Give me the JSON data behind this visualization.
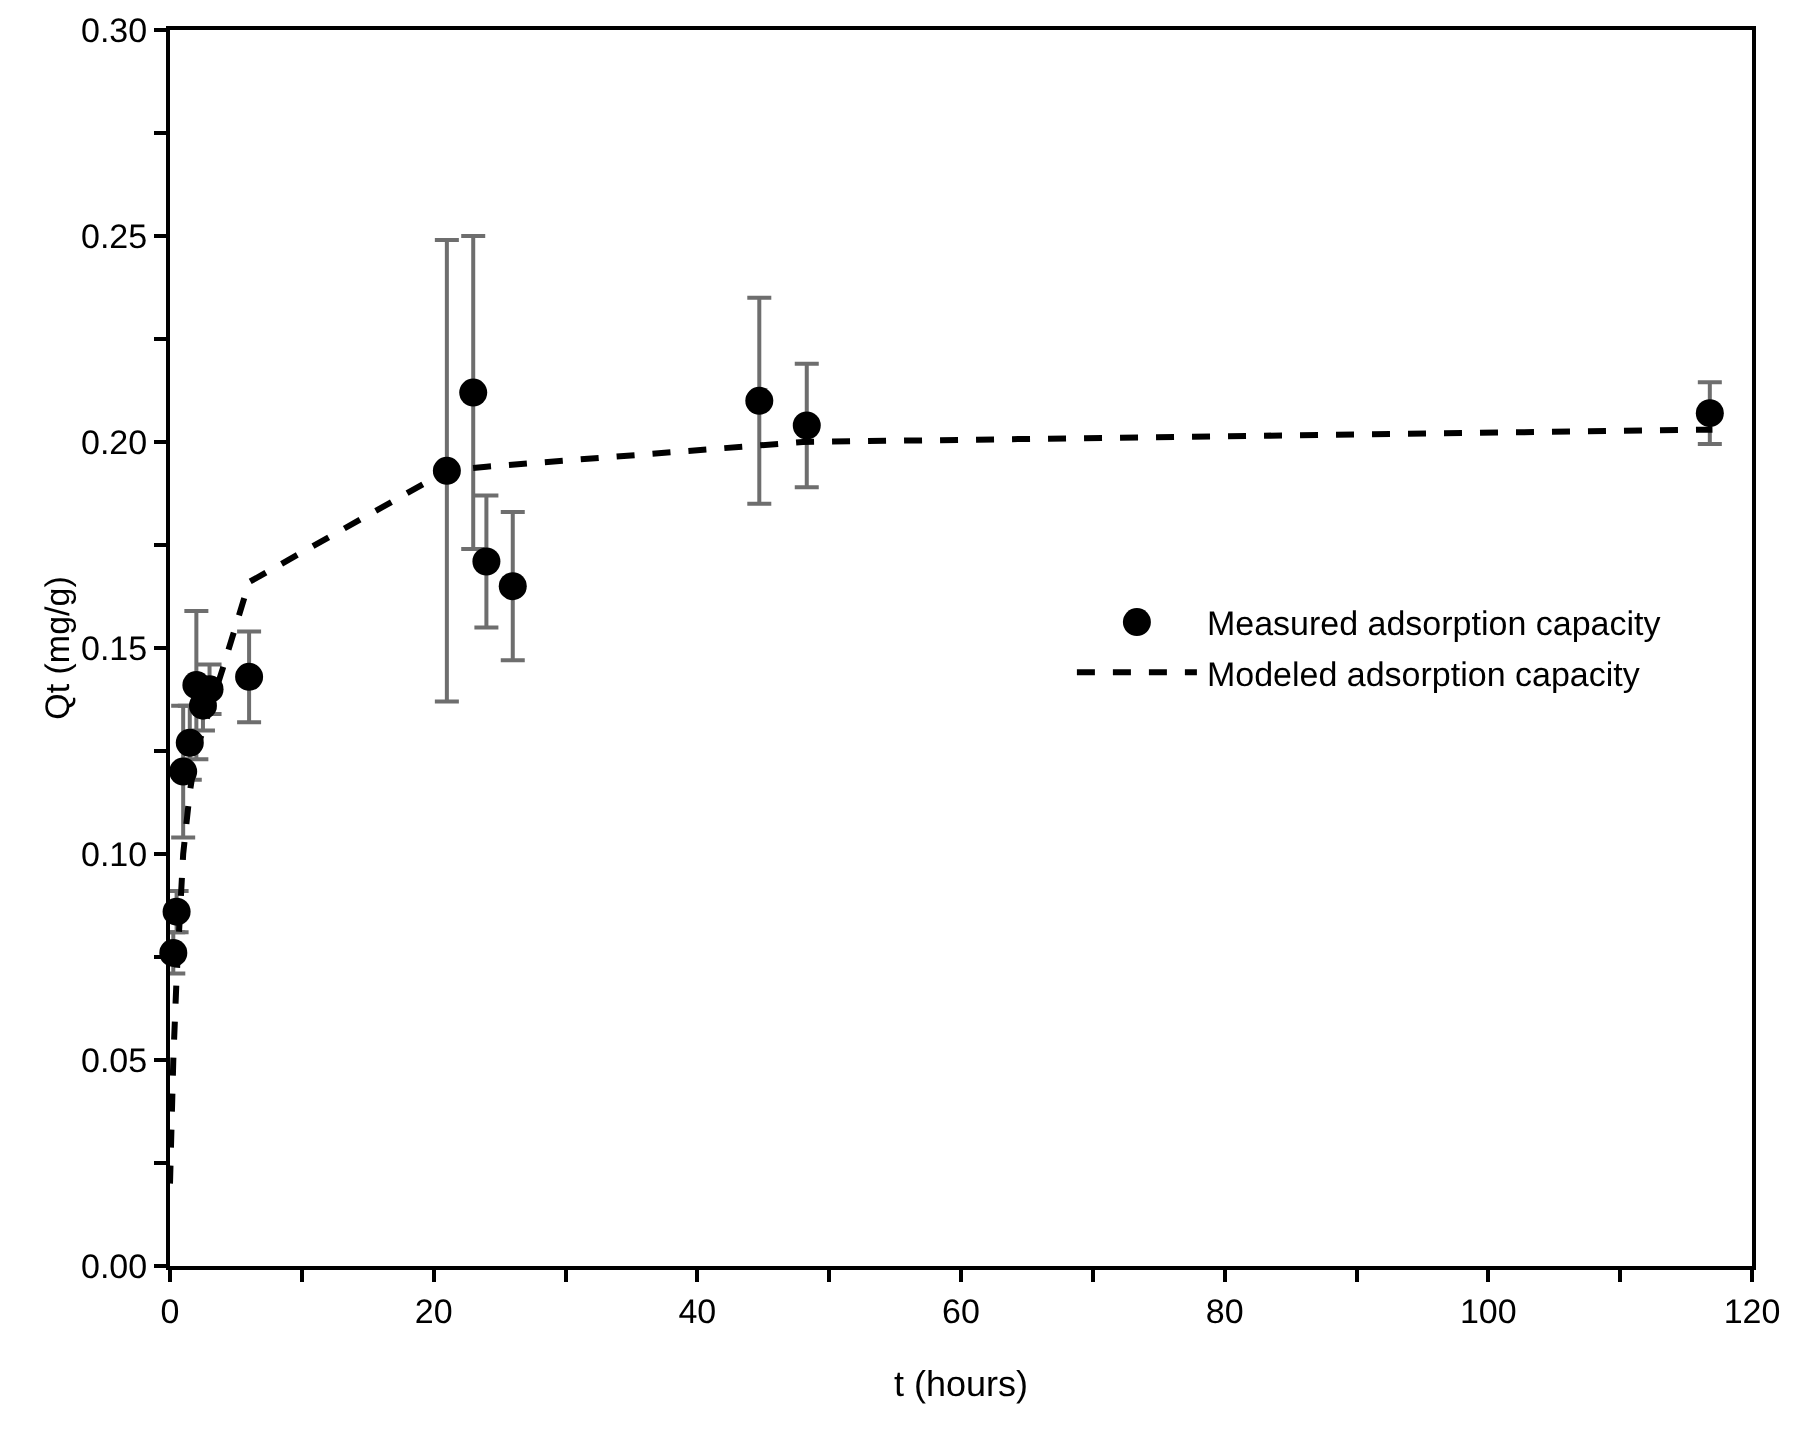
{
  "chart_data": {
    "type": "scatter",
    "xlabel": "t (hours)",
    "ylabel": "Qt (mg/g)",
    "xlim": [
      0,
      120
    ],
    "ylim": [
      0,
      0.3
    ],
    "xticks": [
      0,
      {
        "value": 10,
        "label": null
      },
      20,
      {
        "value": 30,
        "label": null
      },
      40,
      {
        "value": 50,
        "label": null
      },
      60,
      {
        "value": 70,
        "label": null
      },
      80,
      {
        "value": 90,
        "label": null
      },
      100,
      {
        "value": 110,
        "label": null
      },
      120
    ],
    "yticks": [
      {
        "value": 0,
        "label": "0.00"
      },
      {
        "value": 0.025,
        "label": null
      },
      {
        "value": 0.05,
        "label": "0.05"
      },
      {
        "value": 0.075,
        "label": null
      },
      {
        "value": 0.1,
        "label": "0.10"
      },
      {
        "value": 0.125,
        "label": null
      },
      {
        "value": 0.15,
        "label": "0.15"
      },
      {
        "value": 0.175,
        "label": null
      },
      {
        "value": 0.2,
        "label": "0.20"
      },
      {
        "value": 0.225,
        "label": null
      },
      {
        "value": 0.25,
        "label": "0.25"
      },
      {
        "value": 0.275,
        "label": null
      },
      {
        "value": 0.3,
        "label": "0.30"
      }
    ],
    "grid": false,
    "legend": "right",
    "series": [
      {
        "name": "Measured adsorption capacity",
        "color": "#000000",
        "marker": "circle",
        "x": [
          0.25,
          0.5,
          1,
          1.5,
          2,
          2.5,
          3,
          6,
          21,
          23,
          24,
          26,
          44.7,
          48.3,
          116.8
        ],
        "values": [
          0.076,
          0.086,
          0.12,
          0.127,
          0.141,
          0.136,
          0.14,
          0.143,
          0.193,
          0.212,
          0.171,
          0.165,
          0.21,
          0.204,
          0.207
        ],
        "errors": [
          0.005,
          0.005,
          0.016,
          0.009,
          0.018,
          0.006,
          0.006,
          0.011,
          0.056,
          0.038,
          0.016,
          0.018,
          0.025,
          0.015,
          0.0075
        ]
      },
      {
        "name": "Modeled adsorption capacity",
        "type": "line",
        "color": "#000000",
        "line_style": "dashed",
        "marker": "none",
        "x": [
          0,
          0.25,
          0.5,
          1,
          1.5,
          2,
          3,
          4,
          6,
          21,
          24,
          48,
          117
        ],
        "values": [
          0.02,
          0.05,
          0.07,
          0.1,
          0.115,
          0.125,
          0.135,
          0.145,
          0.166,
          0.193,
          0.194,
          0.2,
          0.203
        ]
      }
    ]
  }
}
